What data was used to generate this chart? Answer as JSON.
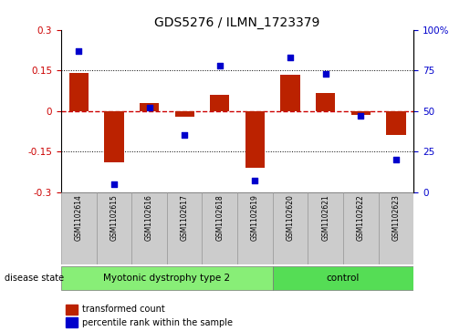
{
  "title": "GDS5276 / ILMN_1723379",
  "samples": [
    "GSM1102614",
    "GSM1102615",
    "GSM1102616",
    "GSM1102617",
    "GSM1102618",
    "GSM1102619",
    "GSM1102620",
    "GSM1102621",
    "GSM1102622",
    "GSM1102623"
  ],
  "bar_values": [
    0.14,
    -0.19,
    0.03,
    -0.02,
    0.06,
    -0.21,
    0.135,
    0.065,
    -0.015,
    -0.09
  ],
  "dot_values": [
    87,
    5,
    52,
    35,
    78,
    7,
    83,
    73,
    47,
    20
  ],
  "ylim_left": [
    -0.3,
    0.3
  ],
  "ylim_right": [
    0,
    100
  ],
  "yticks_left": [
    -0.3,
    -0.15,
    0.0,
    0.15,
    0.3
  ],
  "yticks_right": [
    0,
    25,
    50,
    75,
    100
  ],
  "bar_color": "#BB2200",
  "dot_color": "#0000CC",
  "zero_line_color": "#CC0000",
  "group1_label": "Myotonic dystrophy type 2",
  "group2_label": "control",
  "group1_indices": [
    0,
    1,
    2,
    3,
    4,
    5
  ],
  "group2_indices": [
    6,
    7,
    8,
    9
  ],
  "group1_color": "#88EE77",
  "group2_color": "#55DD55",
  "disease_state_label": "disease state",
  "legend_bar_label": "transformed count",
  "legend_dot_label": "percentile rank within the sample",
  "bar_width": 0.55
}
